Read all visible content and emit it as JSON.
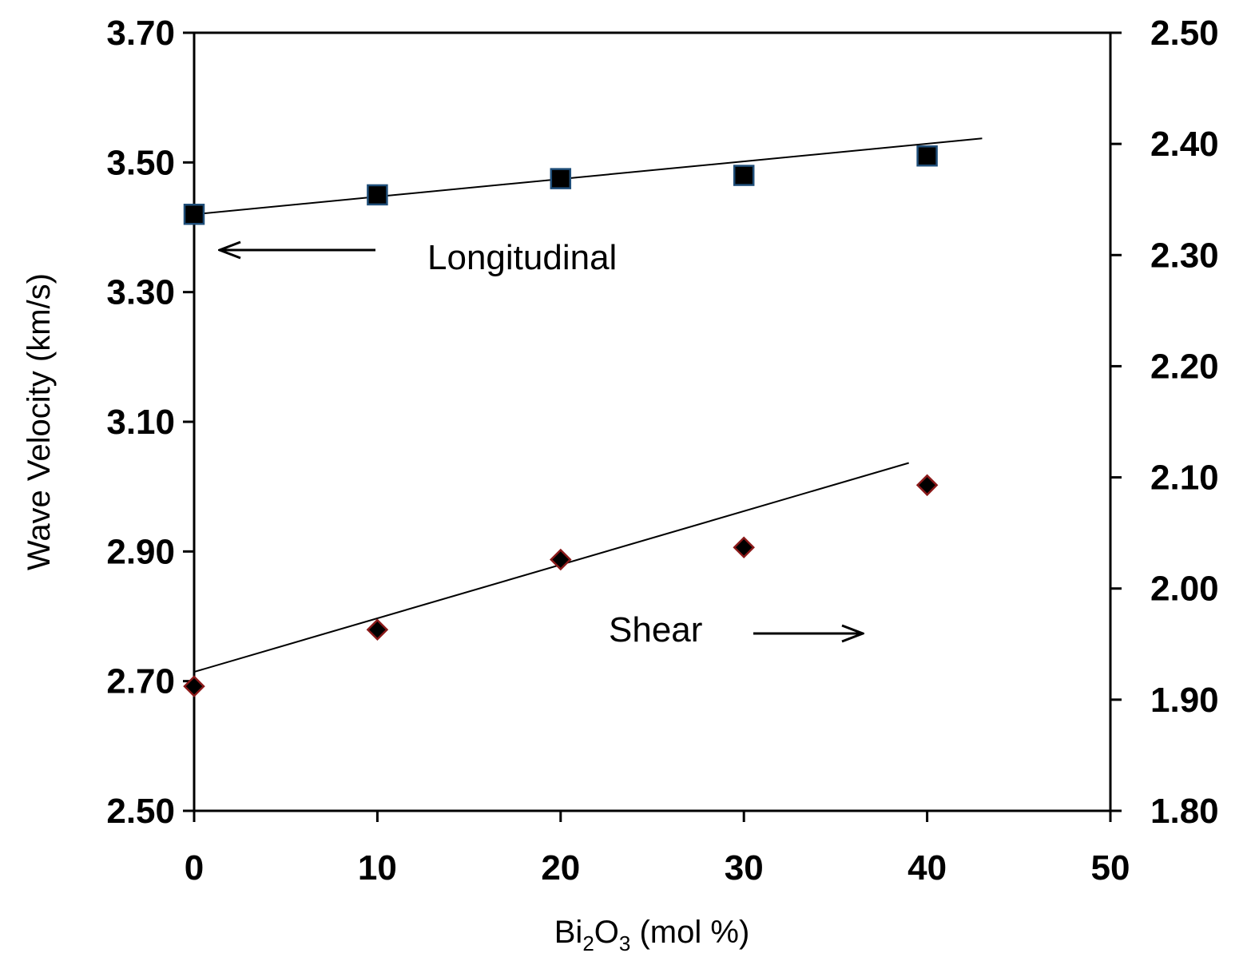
{
  "chart_data": {
    "type": "scatter",
    "title": "",
    "xlabel": {
      "base": "Bi",
      "sub1": "2",
      "mid": "O",
      "sub2": "3",
      "tail": " (mol %)"
    },
    "ylabel": "Wave Velocity (km/s)",
    "xlim": [
      0,
      50
    ],
    "ylim": [
      2.5,
      3.7
    ],
    "y2lim": [
      1.8,
      2.5
    ],
    "x_ticks": [
      "0",
      "10",
      "20",
      "30",
      "40",
      "50"
    ],
    "y_ticks": [
      "2.50",
      "2.70",
      "2.90",
      "3.10",
      "3.30",
      "3.50",
      "3.70"
    ],
    "y2_ticks": [
      "1.80",
      "1.90",
      "2.00",
      "2.10",
      "2.20",
      "2.30",
      "2.40",
      "2.50"
    ],
    "grid": false,
    "series": [
      {
        "name": "Longitudinal",
        "axis": "left",
        "marker": "square",
        "color": "#000000",
        "edge_color": "#1f4e79",
        "x": [
          0,
          10,
          20,
          30,
          40
        ],
        "y": [
          3.42,
          3.45,
          3.475,
          3.48,
          3.51
        ],
        "trendline": {
          "x": [
            0,
            43
          ],
          "y": [
            3.42,
            3.537
          ]
        }
      },
      {
        "name": "Shear",
        "axis": "right",
        "marker": "diamond",
        "color": "#000000",
        "edge_color": "#8b1a1a",
        "x": [
          0,
          10,
          20,
          30,
          40
        ],
        "y": [
          1.912,
          1.963,
          2.026,
          2.037,
          2.093
        ],
        "trendline": {
          "x": [
            0,
            39
          ],
          "y": [
            1.925,
            2.113
          ]
        }
      }
    ],
    "annotations": [
      {
        "text": "Longitudinal",
        "arrow": "left"
      },
      {
        "text": "Shear",
        "arrow": "right"
      }
    ]
  }
}
